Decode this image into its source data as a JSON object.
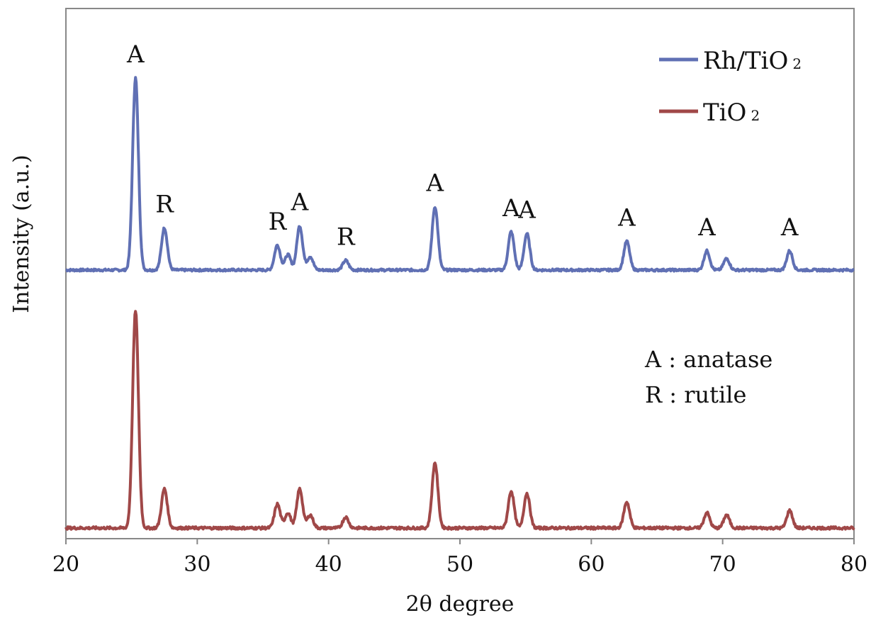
{
  "chart_data": {
    "type": "line",
    "xlabel": "2θ degree",
    "ylabel": "Intensity (a.u.)",
    "xlim": [
      20,
      80
    ],
    "x_ticks": [
      "20",
      "30",
      "40",
      "50",
      "60",
      "70",
      "80"
    ],
    "y_ticks": [],
    "grid": false,
    "legend_position": "top-right",
    "annotations_note": [
      "A : anatase",
      "R : rutile"
    ],
    "series": [
      {
        "name": "Rh/TiO₂",
        "legend_main": "Rh/TiO",
        "legend_sub": "2",
        "color": "#6070b4",
        "baseline": 0.0,
        "peaks": [
          {
            "x": 25.3,
            "y": 1.0,
            "label": "A"
          },
          {
            "x": 27.5,
            "y": 0.22,
            "label": "R"
          },
          {
            "x": 36.1,
            "y": 0.13,
            "label": "R"
          },
          {
            "x": 36.9,
            "y": 0.08,
            "label": ""
          },
          {
            "x": 37.8,
            "y": 0.23,
            "label": "A"
          },
          {
            "x": 38.6,
            "y": 0.07,
            "label": ""
          },
          {
            "x": 41.3,
            "y": 0.05,
            "label": "R"
          },
          {
            "x": 48.1,
            "y": 0.33,
            "label": "A"
          },
          {
            "x": 53.9,
            "y": 0.2,
            "label": "A"
          },
          {
            "x": 55.1,
            "y": 0.19,
            "label": "A"
          },
          {
            "x": 62.7,
            "y": 0.15,
            "label": "A"
          },
          {
            "x": 68.8,
            "y": 0.1,
            "label": "A"
          },
          {
            "x": 70.3,
            "y": 0.06,
            "label": ""
          },
          {
            "x": 75.1,
            "y": 0.1,
            "label": "A"
          }
        ]
      },
      {
        "name": "TiO₂",
        "legend_main": "TiO",
        "legend_sub": "2",
        "color": "#a04848",
        "baseline": 0.0,
        "peaks": [
          {
            "x": 25.3,
            "y": 1.0
          },
          {
            "x": 27.5,
            "y": 0.18
          },
          {
            "x": 36.1,
            "y": 0.11
          },
          {
            "x": 36.9,
            "y": 0.07
          },
          {
            "x": 37.8,
            "y": 0.18
          },
          {
            "x": 38.6,
            "y": 0.06
          },
          {
            "x": 41.3,
            "y": 0.05
          },
          {
            "x": 48.1,
            "y": 0.3
          },
          {
            "x": 53.9,
            "y": 0.17
          },
          {
            "x": 55.1,
            "y": 0.16
          },
          {
            "x": 62.7,
            "y": 0.12
          },
          {
            "x": 68.8,
            "y": 0.07
          },
          {
            "x": 70.3,
            "y": 0.06
          },
          {
            "x": 75.1,
            "y": 0.08
          }
        ]
      }
    ]
  }
}
